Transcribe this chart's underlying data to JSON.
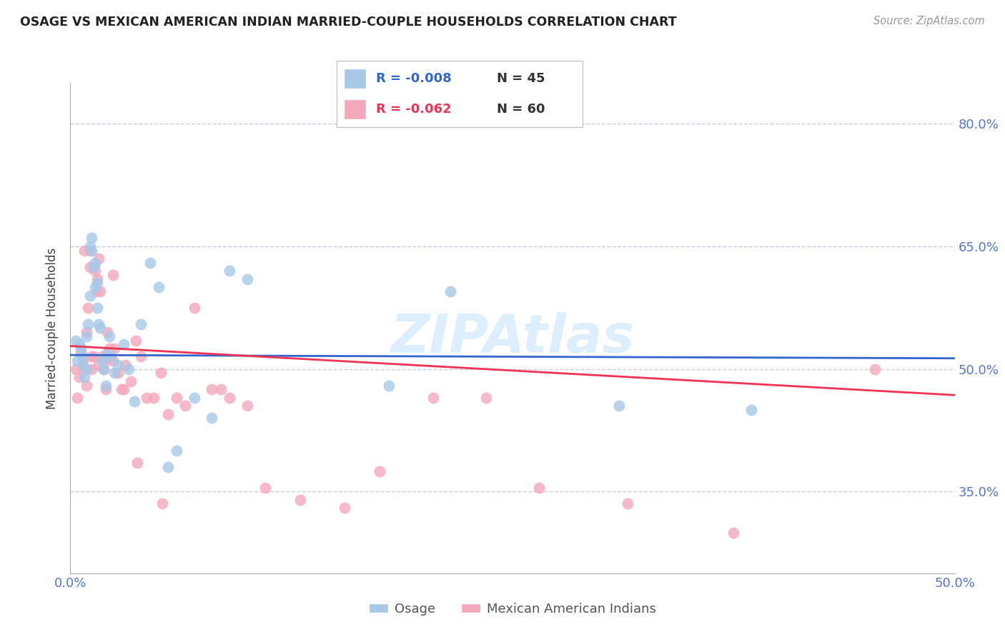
{
  "title": "OSAGE VS MEXICAN AMERICAN INDIAN MARRIED-COUPLE HOUSEHOLDS CORRELATION CHART",
  "source": "Source: ZipAtlas.com",
  "ylabel": "Married-couple Households",
  "xlim": [
    0.0,
    0.5
  ],
  "ylim": [
    0.25,
    0.85
  ],
  "yticks": [
    0.35,
    0.5,
    0.65,
    0.8
  ],
  "ytick_labels": [
    "35.0%",
    "50.0%",
    "65.0%",
    "80.0%"
  ],
  "xticks": [
    0.0,
    0.1,
    0.2,
    0.3,
    0.4,
    0.5
  ],
  "xtick_labels": [
    "0.0%",
    "",
    "",
    "",
    "",
    "50.0%"
  ],
  "legend_r_blue": "R = -0.008",
  "legend_n_blue": "N = 45",
  "legend_r_pink": "R = -0.062",
  "legend_n_pink": "N = 60",
  "blue_color": "#A8C8E8",
  "pink_color": "#F4A8BC",
  "blue_line_color": "#3366CC",
  "pink_line_color": "#EE3355",
  "axis_color": "#5577CC",
  "grid_color": "#CCCCDD",
  "title_color": "#222222",
  "watermark_color": "#DDEEFF",
  "background_color": "#FFFFFF",
  "blue_line_x0": 0.0,
  "blue_line_x1": 0.5,
  "blue_line_y0": 0.517,
  "blue_line_y1": 0.513,
  "pink_line_x0": 0.0,
  "pink_line_x1": 0.5,
  "pink_line_y0": 0.528,
  "pink_line_y1": 0.468,
  "blue_scatter_x": [
    0.003,
    0.004,
    0.005,
    0.006,
    0.007,
    0.007,
    0.008,
    0.009,
    0.009,
    0.01,
    0.011,
    0.011,
    0.012,
    0.012,
    0.013,
    0.014,
    0.014,
    0.015,
    0.015,
    0.016,
    0.017,
    0.018,
    0.019,
    0.02,
    0.021,
    0.022,
    0.023,
    0.025,
    0.027,
    0.03,
    0.033,
    0.036,
    0.04,
    0.045,
    0.05,
    0.055,
    0.06,
    0.07,
    0.08,
    0.09,
    0.1,
    0.18,
    0.215,
    0.31,
    0.385
  ],
  "blue_scatter_y": [
    0.535,
    0.51,
    0.53,
    0.525,
    0.515,
    0.505,
    0.49,
    0.5,
    0.54,
    0.555,
    0.59,
    0.65,
    0.66,
    0.645,
    0.625,
    0.6,
    0.63,
    0.605,
    0.575,
    0.555,
    0.55,
    0.51,
    0.5,
    0.48,
    0.52,
    0.54,
    0.515,
    0.495,
    0.505,
    0.53,
    0.5,
    0.46,
    0.555,
    0.63,
    0.6,
    0.38,
    0.4,
    0.465,
    0.44,
    0.62,
    0.61,
    0.48,
    0.595,
    0.455,
    0.45
  ],
  "pink_scatter_x": [
    0.003,
    0.005,
    0.006,
    0.007,
    0.008,
    0.009,
    0.009,
    0.01,
    0.011,
    0.011,
    0.012,
    0.013,
    0.014,
    0.015,
    0.015,
    0.016,
    0.017,
    0.018,
    0.019,
    0.02,
    0.021,
    0.022,
    0.024,
    0.025,
    0.027,
    0.029,
    0.031,
    0.034,
    0.037,
    0.04,
    0.043,
    0.047,
    0.051,
    0.055,
    0.06,
    0.065,
    0.07,
    0.08,
    0.09,
    0.1,
    0.11,
    0.13,
    0.155,
    0.175,
    0.205,
    0.235,
    0.265,
    0.315,
    0.375,
    0.455,
    0.004,
    0.008,
    0.012,
    0.016,
    0.02,
    0.024,
    0.03,
    0.038,
    0.052,
    0.085
  ],
  "pink_scatter_y": [
    0.5,
    0.49,
    0.52,
    0.51,
    0.5,
    0.48,
    0.545,
    0.575,
    0.625,
    0.645,
    0.5,
    0.515,
    0.62,
    0.595,
    0.61,
    0.635,
    0.595,
    0.515,
    0.5,
    0.51,
    0.545,
    0.525,
    0.51,
    0.525,
    0.495,
    0.475,
    0.505,
    0.485,
    0.535,
    0.515,
    0.465,
    0.465,
    0.495,
    0.445,
    0.465,
    0.455,
    0.575,
    0.475,
    0.465,
    0.455,
    0.355,
    0.34,
    0.33,
    0.375,
    0.465,
    0.465,
    0.355,
    0.335,
    0.3,
    0.5,
    0.465,
    0.645,
    0.515,
    0.505,
    0.475,
    0.615,
    0.475,
    0.385,
    0.335,
    0.475
  ]
}
